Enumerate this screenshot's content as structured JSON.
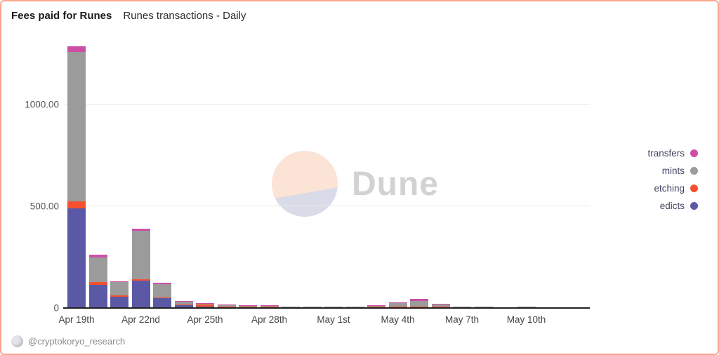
{
  "header": {
    "title": "Fees paid for Runes",
    "subtitle": "Runes transactions - Daily"
  },
  "watermark": {
    "text": "Dune"
  },
  "footer": {
    "handle": "@cryptokoryo_research"
  },
  "legend": {
    "items": [
      {
        "label": "transfers",
        "color": "#cc4fa6"
      },
      {
        "label": "mints",
        "color": "#9b9b9b"
      },
      {
        "label": "etching",
        "color": "#f6512e"
      },
      {
        "label": "edicts",
        "color": "#5b59a6"
      }
    ]
  },
  "chart_data": {
    "type": "bar",
    "stacked": true,
    "title": "Fees paid for Runes",
    "subtitle": "Runes transactions - Daily",
    "x": [
      "Apr 19",
      "Apr 20",
      "Apr 21",
      "Apr 22",
      "Apr 23",
      "Apr 24",
      "Apr 25",
      "Apr 26",
      "Apr 27",
      "Apr 28",
      "Apr 29",
      "Apr 30",
      "May 1",
      "May 2",
      "May 3",
      "May 4",
      "May 5",
      "May 6",
      "May 7",
      "May 8",
      "May 9",
      "May 10",
      "May 11"
    ],
    "tick_labels": [
      "Apr 19th",
      "Apr 22nd",
      "Apr 25th",
      "Apr 28th",
      "May 1st",
      "May 4th",
      "May 7th",
      "May 10th"
    ],
    "tick_indices": [
      0,
      3,
      6,
      9,
      12,
      15,
      18,
      21
    ],
    "series": [
      {
        "name": "edicts",
        "color": "#5b59a6",
        "values": [
          490,
          115,
          55,
          135,
          48,
          14,
          6,
          4,
          3,
          2,
          1,
          1,
          1,
          1,
          1,
          3,
          5,
          2,
          1,
          1,
          0,
          1,
          0
        ]
      },
      {
        "name": "etching",
        "color": "#f6512e",
        "values": [
          35,
          12,
          6,
          6,
          5,
          3,
          10,
          3,
          2,
          2,
          1,
          1,
          0,
          0,
          1,
          1,
          2,
          1,
          0,
          0,
          0,
          0,
          0
        ]
      },
      {
        "name": "mints",
        "color": "#9b9b9b",
        "values": [
          735,
          120,
          65,
          240,
          65,
          14,
          4,
          6,
          7,
          4,
          2,
          3,
          1,
          1,
          4,
          18,
          28,
          12,
          3,
          1,
          2,
          1,
          2
        ]
      },
      {
        "name": "transfers",
        "color": "#cc4fa6",
        "values": [
          25,
          15,
          6,
          8,
          6,
          3,
          2,
          1,
          1,
          1,
          0,
          0,
          0,
          0,
          1,
          3,
          8,
          1,
          0,
          0,
          0,
          0,
          0
        ]
      }
    ],
    "ylabel_ticks": [
      "0",
      "500.00",
      "1000.00"
    ],
    "ytick_values": [
      0,
      500,
      1000
    ],
    "ylim": [
      0,
      1317
    ],
    "grid": true,
    "legend_position": "right"
  }
}
